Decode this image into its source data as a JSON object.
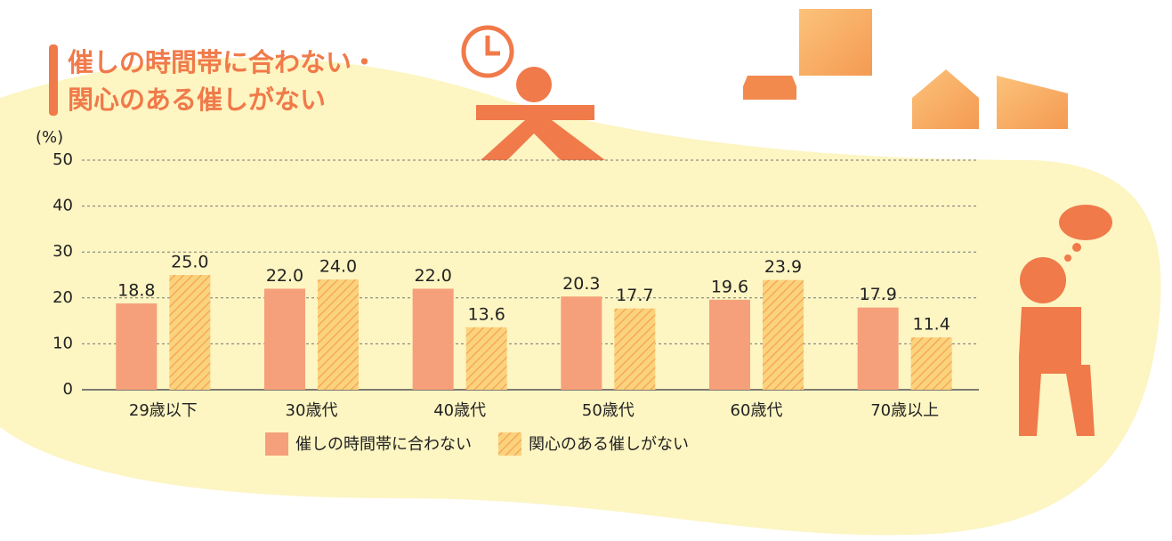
{
  "chart_data": {
    "type": "bar",
    "title": [
      "催しの時間帯に合わない・",
      "関心のある催しがない"
    ],
    "y_label": "(%)",
    "categories": [
      "29歳以下",
      "30歳代",
      "40歳代",
      "50歳代",
      "60歳代",
      "70歳以上"
    ],
    "series": [
      {
        "name": "催しの時間帯に合わない",
        "color": "#f5a07a",
        "values": [
          18.8,
          22,
          22,
          20.3,
          19.6,
          17.9
        ],
        "value_labels": [
          "18.8",
          "22.0",
          "22.0",
          "20.3",
          "19.6",
          "17.9"
        ]
      },
      {
        "name": "関心のある催しがない",
        "color": "#fbd37a",
        "hatch": "#f5a05f",
        "values": [
          25,
          24,
          13.6,
          17.7,
          23.9,
          11.4
        ],
        "value_labels": [
          "25.0",
          "24.0",
          "13.6",
          "17.7",
          "23.9",
          "11.4"
        ]
      }
    ],
    "ylim": [
      0,
      50
    ],
    "yticks": [
      0,
      10,
      20,
      30,
      40,
      50
    ],
    "grid": true
  }
}
